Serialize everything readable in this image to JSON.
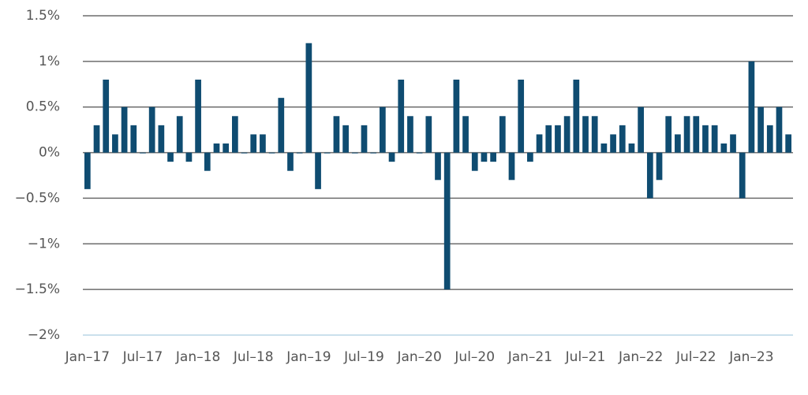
{
  "chart_data": {
    "type": "bar",
    "color": "#0f4c71",
    "categories": [
      "Jan–17",
      null,
      null,
      null,
      null,
      null,
      "Jul–17",
      null,
      null,
      null,
      null,
      null,
      "Jan–18",
      null,
      null,
      null,
      null,
      null,
      "Jul–18",
      null,
      null,
      null,
      null,
      null,
      "Jan–19",
      null,
      null,
      null,
      null,
      null,
      "Jul–19",
      null,
      null,
      null,
      null,
      null,
      "Jan–20",
      null,
      null,
      null,
      null,
      null,
      "Jul–20",
      null,
      null,
      null,
      null,
      null,
      "Jan–21",
      null,
      null,
      null,
      null,
      null,
      "Jul–21",
      null,
      null,
      null,
      null,
      null,
      "Jan–22",
      null,
      null,
      null,
      null,
      null,
      "Jul–22",
      null,
      null,
      null,
      null,
      null,
      "Jan–23",
      null,
      null,
      null,
      null
    ],
    "values": [
      -0.4,
      0.3,
      0.8,
      0.2,
      0.5,
      0.3,
      0,
      0.5,
      0.3,
      -0.1,
      0.4,
      -0.1,
      0.8,
      -0.2,
      0.1,
      0.1,
      0.4,
      0,
      0.2,
      0.2,
      0,
      0.6,
      -0.2,
      0,
      1.2,
      -0.4,
      0,
      0.4,
      0.3,
      0,
      0.3,
      0,
      0.5,
      -0.1,
      0.8,
      0.4,
      0,
      0.4,
      -0.3,
      -1.5,
      0.8,
      0.4,
      -0.2,
      -0.1,
      -0.1,
      0.4,
      -0.3,
      0.8,
      -0.1,
      0.2,
      0.3,
      0.3,
      0.4,
      0.8,
      0.4,
      0.4,
      0.1,
      0.2,
      0.3,
      0.1,
      0.5,
      -0.5,
      -0.3,
      0.4,
      0.2,
      0.4,
      0.4,
      0.3,
      0.3,
      0.1,
      0.2,
      -0.5,
      1.0,
      0.5,
      0.3,
      0.5,
      0.2
    ],
    "ylim": [
      -2,
      1.5
    ],
    "yticks": [
      {
        "value": -2,
        "label": "−2%"
      },
      {
        "value": -1.5,
        "label": "−1.5%"
      },
      {
        "value": -1,
        "label": "−1%"
      },
      {
        "value": -0.5,
        "label": "−0.5%"
      },
      {
        "value": 0,
        "label": "0%"
      },
      {
        "value": 0.5,
        "label": "0.5%"
      },
      {
        "value": 1,
        "label": "1%"
      },
      {
        "value": 1.5,
        "label": "1.5%"
      }
    ],
    "grid": true
  }
}
